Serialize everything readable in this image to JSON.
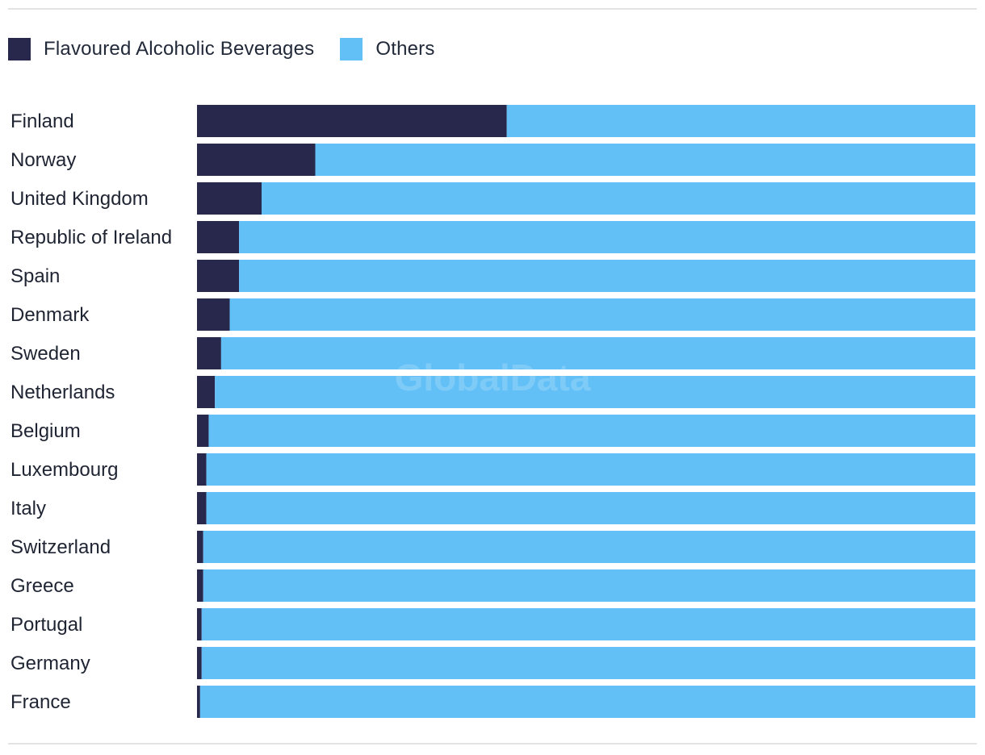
{
  "watermark": "GlobalData",
  "chart_data": {
    "type": "bar",
    "orientation": "horizontal",
    "stacked": true,
    "categories": [
      "Finland",
      "Norway",
      "United Kingdom",
      "Republic of Ireland",
      "Spain",
      "Denmark",
      "Sweden",
      "Netherlands",
      "Belgium",
      "Luxembourg",
      "Italy",
      "Switzerland",
      "Greece",
      "Portugal",
      "Germany",
      "France"
    ],
    "series": [
      {
        "name": "Flavoured Alcoholic Beverages",
        "color": "#27284c",
        "values": [
          39.8,
          15.2,
          8.3,
          5.4,
          5.4,
          4.2,
          3.1,
          2.3,
          1.5,
          1.2,
          1.2,
          0.8,
          0.8,
          0.6,
          0.6,
          0.4
        ]
      },
      {
        "name": "Others",
        "color": "#63c0f7",
        "values": [
          60.2,
          84.8,
          91.7,
          94.6,
          94.6,
          95.8,
          96.9,
          97.7,
          98.5,
          98.8,
          98.8,
          99.2,
          99.2,
          99.4,
          99.4,
          99.6
        ]
      }
    ],
    "xlim": [
      0,
      100
    ],
    "legend_position": "top-left",
    "grid": false
  }
}
